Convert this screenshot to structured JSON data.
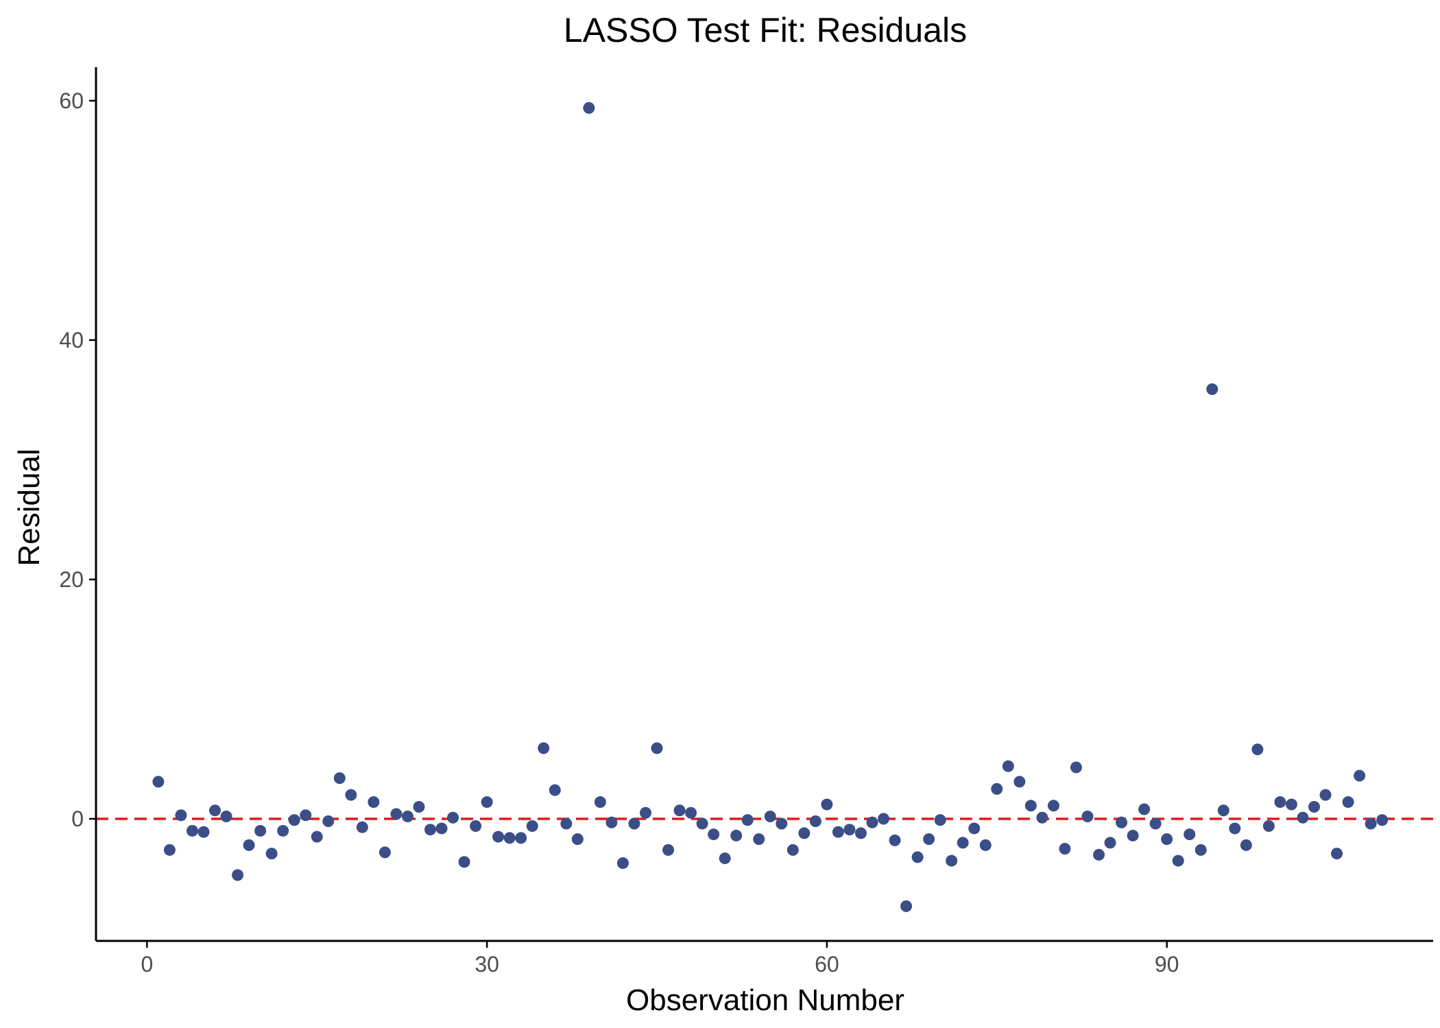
{
  "chart_data": {
    "type": "scatter",
    "title": "LASSO Test Fit: Residuals",
    "xlabel": "Observation Number",
    "ylabel": "Residual",
    "xlim": [
      -4.5,
      113.5
    ],
    "ylim": [
      -10.2,
      62.8
    ],
    "x_ticks": [
      0,
      30,
      60,
      90
    ],
    "y_ticks": [
      0,
      20,
      40,
      60
    ],
    "grid": false,
    "legend": "none",
    "reference_line": {
      "y": 0,
      "style": "dashed",
      "color": "#e31a1c"
    },
    "point_color": "#3b4e87",
    "series": [
      {
        "x": [
          1,
          2,
          3,
          4,
          5,
          6,
          7,
          8,
          9,
          10,
          11,
          12,
          13,
          14,
          15,
          16,
          17,
          18,
          19,
          20,
          21,
          22,
          23,
          24,
          25,
          26,
          27,
          28,
          29,
          30,
          31,
          32,
          33,
          34,
          35,
          36,
          37,
          38,
          39,
          40,
          41,
          42,
          43,
          44,
          45,
          46,
          47,
          48,
          49,
          50,
          51,
          52,
          53,
          54,
          55,
          56,
          57,
          58,
          59,
          60,
          61,
          62,
          63,
          64,
          65,
          66,
          67,
          68,
          69,
          70,
          71,
          72,
          73,
          74,
          75,
          76,
          77,
          78,
          79,
          80,
          81,
          82,
          83,
          84,
          85,
          86,
          87,
          88,
          89,
          90,
          91,
          92,
          93,
          94,
          95,
          96,
          97,
          98,
          99,
          100,
          101,
          102,
          103,
          104,
          105,
          106,
          107,
          108,
          109
        ],
        "y": [
          3.1,
          -2.6,
          0.3,
          -1.0,
          -1.1,
          0.7,
          0.2,
          -4.7,
          -2.2,
          -1.0,
          -2.9,
          -1.0,
          -0.1,
          0.3,
          -1.5,
          -0.2,
          3.4,
          2.0,
          -0.7,
          1.4,
          -2.8,
          0.4,
          0.2,
          1.0,
          -0.9,
          -0.8,
          0.1,
          -3.6,
          -0.6,
          1.4,
          -1.5,
          -1.6,
          -1.6,
          -0.6,
          5.9,
          2.4,
          -0.4,
          -1.7,
          59.4,
          1.4,
          -0.3,
          -3.7,
          -0.4,
          0.5,
          5.9,
          -2.6,
          0.7,
          0.5,
          -0.4,
          -1.3,
          -3.3,
          -1.4,
          -0.1,
          -1.7,
          0.2,
          -0.4,
          -2.6,
          -1.2,
          -0.2,
          1.2,
          -1.1,
          -0.9,
          -1.2,
          -0.3,
          0.0,
          -1.8,
          -7.3,
          -3.2,
          -1.7,
          -0.1,
          -3.5,
          -2.0,
          -0.8,
          -2.2,
          2.5,
          4.4,
          3.1,
          1.1,
          0.1,
          1.1,
          -2.5,
          4.3,
          0.2,
          -3.0,
          -2.0,
          -0.3,
          -1.4,
          0.8,
          -0.4,
          -1.7,
          -3.5,
          -1.3,
          -2.6,
          35.9,
          0.7,
          -0.8,
          -2.2,
          5.8,
          -0.6,
          1.4,
          1.2,
          0.1,
          1.0,
          2.0,
          -2.9,
          1.4,
          3.6,
          -0.4,
          -0.1
        ]
      }
    ]
  }
}
